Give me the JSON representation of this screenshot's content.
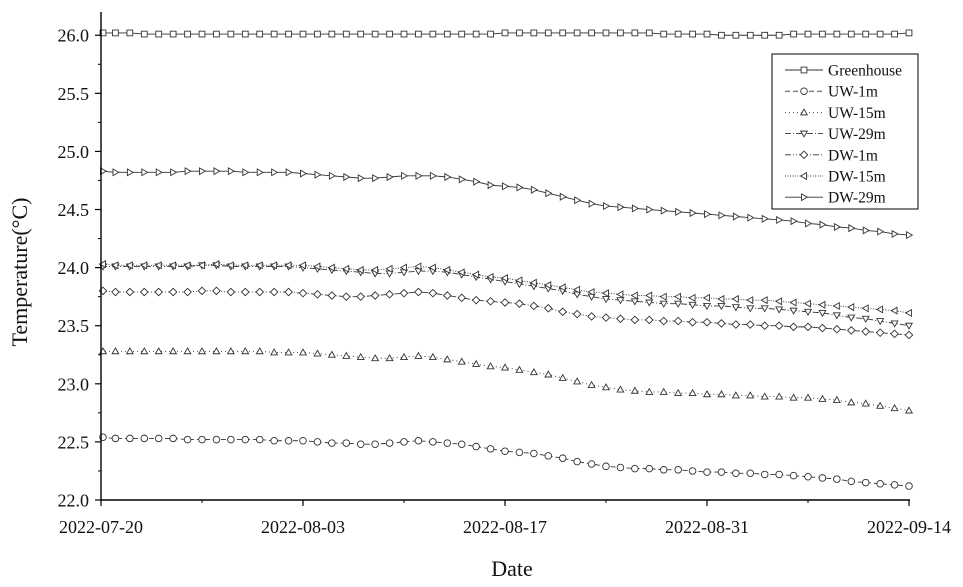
{
  "chart_data": {
    "type": "line",
    "title": "",
    "xlabel": "Date",
    "ylabel": "Temperature(°C)",
    "ylim": [
      22.0,
      26.2
    ],
    "xlim": [
      "2022-07-20",
      "2022-09-14"
    ],
    "x_ticks": [
      "2022-07-20",
      "2022-08-03",
      "2022-08-17",
      "2022-08-31",
      "2022-09-14"
    ],
    "y_ticks": [
      "22.0",
      "22.5",
      "23.0",
      "23.5",
      "24.0",
      "24.5",
      "25.0",
      "25.5",
      "26.0"
    ],
    "grid": false,
    "legend_position": "top-right",
    "x": [
      "2022-07-20",
      "2022-07-21",
      "2022-07-22",
      "2022-07-23",
      "2022-07-24",
      "2022-07-25",
      "2022-07-26",
      "2022-07-27",
      "2022-07-28",
      "2022-07-29",
      "2022-07-30",
      "2022-07-31",
      "2022-08-01",
      "2022-08-02",
      "2022-08-03",
      "2022-08-04",
      "2022-08-05",
      "2022-08-06",
      "2022-08-07",
      "2022-08-08",
      "2022-08-09",
      "2022-08-10",
      "2022-08-11",
      "2022-08-12",
      "2022-08-13",
      "2022-08-14",
      "2022-08-15",
      "2022-08-16",
      "2022-08-17",
      "2022-08-18",
      "2022-08-19",
      "2022-08-20",
      "2022-08-21",
      "2022-08-22",
      "2022-08-23",
      "2022-08-24",
      "2022-08-25",
      "2022-08-26",
      "2022-08-27",
      "2022-08-28",
      "2022-08-29",
      "2022-08-30",
      "2022-08-31",
      "2022-09-01",
      "2022-09-02",
      "2022-09-03",
      "2022-09-04",
      "2022-09-05",
      "2022-09-06",
      "2022-09-07",
      "2022-09-08",
      "2022-09-09",
      "2022-09-10",
      "2022-09-11",
      "2022-09-12",
      "2022-09-13",
      "2022-09-14"
    ],
    "series": [
      {
        "name": "Greenhouse",
        "marker": "square",
        "dash": "",
        "values": [
          26.02,
          26.02,
          26.02,
          26.01,
          26.01,
          26.01,
          26.01,
          26.01,
          26.01,
          26.01,
          26.01,
          26.01,
          26.01,
          26.01,
          26.01,
          26.01,
          26.01,
          26.01,
          26.01,
          26.01,
          26.01,
          26.01,
          26.01,
          26.01,
          26.01,
          26.01,
          26.01,
          26.01,
          26.02,
          26.02,
          26.02,
          26.02,
          26.02,
          26.02,
          26.02,
          26.02,
          26.02,
          26.02,
          26.02,
          26.01,
          26.01,
          26.01,
          26.01,
          26.0,
          26.0,
          26.0,
          26.0,
          26.0,
          26.01,
          26.01,
          26.01,
          26.01,
          26.01,
          26.01,
          26.01,
          26.01,
          26.02
        ]
      },
      {
        "name": "UW-1m",
        "marker": "circle",
        "dash": "5,3",
        "values": [
          22.54,
          22.53,
          22.53,
          22.53,
          22.53,
          22.53,
          22.52,
          22.52,
          22.52,
          22.52,
          22.52,
          22.52,
          22.51,
          22.51,
          22.51,
          22.5,
          22.49,
          22.49,
          22.48,
          22.48,
          22.49,
          22.5,
          22.51,
          22.5,
          22.49,
          22.48,
          22.46,
          22.44,
          22.42,
          22.41,
          22.4,
          22.38,
          22.36,
          22.33,
          22.31,
          22.29,
          22.28,
          22.27,
          22.27,
          22.26,
          22.26,
          22.25,
          22.24,
          22.24,
          22.23,
          22.23,
          22.22,
          22.22,
          22.21,
          22.2,
          22.19,
          22.18,
          22.16,
          22.15,
          22.14,
          22.13,
          22.12
        ]
      },
      {
        "name": "UW-15m",
        "marker": "triangle-up",
        "dash": "1,3",
        "values": [
          23.28,
          23.28,
          23.28,
          23.28,
          23.28,
          23.28,
          23.28,
          23.28,
          23.28,
          23.28,
          23.28,
          23.28,
          23.27,
          23.27,
          23.27,
          23.26,
          23.25,
          23.24,
          23.23,
          23.22,
          23.22,
          23.23,
          23.24,
          23.23,
          23.21,
          23.19,
          23.17,
          23.15,
          23.14,
          23.12,
          23.1,
          23.08,
          23.05,
          23.02,
          22.99,
          22.97,
          22.95,
          22.94,
          22.93,
          22.93,
          22.92,
          22.92,
          22.91,
          22.91,
          22.9,
          22.9,
          22.89,
          22.89,
          22.88,
          22.88,
          22.87,
          22.86,
          22.84,
          22.83,
          22.81,
          22.79,
          22.77
        ]
      },
      {
        "name": "UW-29m",
        "marker": "triangle-down",
        "dash": "6,2,1,2",
        "values": [
          24.01,
          24.01,
          24.01,
          24.01,
          24.01,
          24.01,
          24.01,
          24.02,
          24.02,
          24.01,
          24.01,
          24.01,
          24.01,
          24.01,
          24.0,
          23.99,
          23.98,
          23.97,
          23.96,
          23.95,
          23.95,
          23.96,
          23.97,
          23.97,
          23.96,
          23.94,
          23.92,
          23.9,
          23.88,
          23.86,
          23.84,
          23.82,
          23.8,
          23.77,
          23.75,
          23.73,
          23.72,
          23.71,
          23.7,
          23.69,
          23.69,
          23.68,
          23.67,
          23.67,
          23.66,
          23.65,
          23.65,
          23.64,
          23.63,
          23.62,
          23.61,
          23.59,
          23.57,
          23.56,
          23.54,
          23.52,
          23.5
        ]
      },
      {
        "name": "DW-1m",
        "marker": "diamond",
        "dash": "6,2,1,2,1,2",
        "values": [
          23.8,
          23.79,
          23.79,
          23.79,
          23.79,
          23.79,
          23.79,
          23.8,
          23.8,
          23.79,
          23.79,
          23.79,
          23.79,
          23.79,
          23.78,
          23.77,
          23.76,
          23.75,
          23.75,
          23.76,
          23.77,
          23.78,
          23.79,
          23.78,
          23.76,
          23.74,
          23.72,
          23.71,
          23.7,
          23.69,
          23.67,
          23.65,
          23.62,
          23.6,
          23.58,
          23.57,
          23.56,
          23.55,
          23.55,
          23.54,
          23.54,
          23.53,
          23.53,
          23.52,
          23.51,
          23.51,
          23.5,
          23.5,
          23.49,
          23.49,
          23.48,
          23.47,
          23.46,
          23.45,
          23.44,
          23.43,
          23.42
        ]
      },
      {
        "name": "DW-15m",
        "marker": "triangle-left",
        "dash": "1,1.5",
        "values": [
          24.03,
          24.02,
          24.02,
          24.02,
          24.02,
          24.02,
          24.02,
          24.02,
          24.03,
          24.02,
          24.02,
          24.02,
          24.02,
          24.02,
          24.02,
          24.01,
          24.0,
          23.99,
          23.98,
          23.98,
          23.99,
          24.0,
          24.01,
          24.0,
          23.98,
          23.96,
          23.94,
          23.92,
          23.91,
          23.89,
          23.87,
          23.85,
          23.83,
          23.81,
          23.79,
          23.78,
          23.77,
          23.76,
          23.76,
          23.75,
          23.75,
          23.74,
          23.74,
          23.73,
          23.73,
          23.72,
          23.72,
          23.71,
          23.7,
          23.69,
          23.68,
          23.67,
          23.66,
          23.65,
          23.64,
          23.63,
          23.61
        ]
      },
      {
        "name": "DW-29m",
        "marker": "triangle-right",
        "dash": "",
        "values": [
          24.83,
          24.82,
          24.82,
          24.82,
          24.82,
          24.82,
          24.83,
          24.83,
          24.83,
          24.83,
          24.82,
          24.82,
          24.82,
          24.82,
          24.81,
          24.8,
          24.79,
          24.78,
          24.77,
          24.77,
          24.78,
          24.79,
          24.79,
          24.79,
          24.78,
          24.76,
          24.74,
          24.71,
          24.7,
          24.69,
          24.67,
          24.64,
          24.61,
          24.58,
          24.55,
          24.53,
          24.52,
          24.51,
          24.5,
          24.49,
          24.48,
          24.47,
          24.46,
          24.45,
          24.44,
          24.43,
          24.42,
          24.41,
          24.4,
          24.38,
          24.37,
          24.35,
          24.34,
          24.32,
          24.31,
          24.29,
          24.28
        ]
      }
    ]
  }
}
